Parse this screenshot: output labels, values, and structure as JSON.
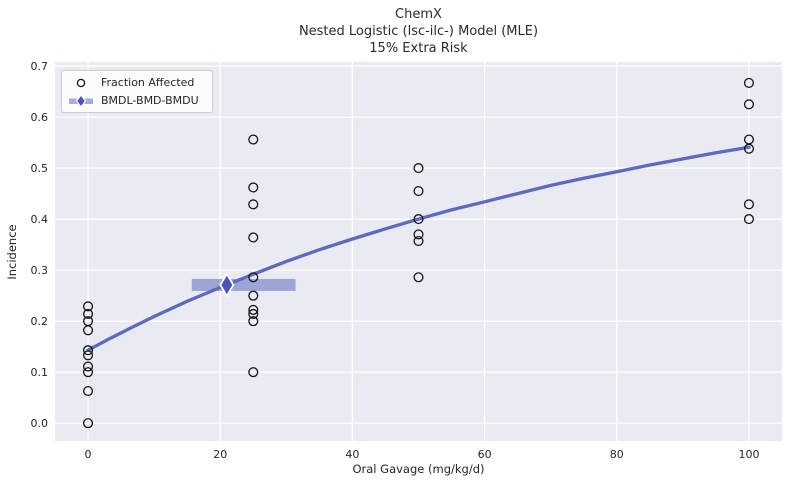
{
  "figure": {
    "title_lines": [
      "ChemX",
      "Nested Logistic (lsc-ilc-) Model (MLE)",
      "15% Extra Risk"
    ]
  },
  "legend": {
    "items": [
      {
        "label": "Fraction Affected",
        "marker": "open-circle-icon"
      },
      {
        "label": "BMDL-BMD-BMDU",
        "marker": "bmd-interval-icon"
      }
    ]
  },
  "chart_data": {
    "type": "scatter",
    "title": "ChemX\nNested Logistic (lsc-ilc-) Model (MLE)\n15% Extra Risk",
    "xlabel": "Oral Gavage (mg/kg/d)",
    "ylabel": "Incidence",
    "xlim": [
      -5,
      105
    ],
    "ylim": [
      -0.035,
      0.708
    ],
    "xticks": [
      0,
      20,
      40,
      60,
      80,
      100
    ],
    "yticks": [
      0.0,
      0.1,
      0.2,
      0.3,
      0.4,
      0.5,
      0.6,
      0.7
    ],
    "grid": true,
    "legend_position": "upper left",
    "scatter_series": {
      "name": "Fraction Affected",
      "marker": "open-circle",
      "groups": [
        {
          "dose": 0,
          "fractions": [
            0.0,
            0.063,
            0.1,
            0.111,
            0.133,
            0.143,
            0.182,
            0.2,
            0.214,
            0.229
          ]
        },
        {
          "dose": 25,
          "fractions": [
            0.1,
            0.2,
            0.214,
            0.222,
            0.25,
            0.286,
            0.364,
            0.429,
            0.462,
            0.556
          ]
        },
        {
          "dose": 50,
          "fractions": [
            0.286,
            0.357,
            0.37,
            0.4,
            0.455,
            0.5
          ]
        },
        {
          "dose": 100,
          "fractions": [
            0.4,
            0.429,
            0.538,
            0.556,
            0.625,
            0.667
          ]
        }
      ]
    },
    "model_curve": {
      "name": "Nested Logistic MLE fit",
      "x": [
        0,
        1,
        2,
        3,
        5,
        7,
        10,
        15,
        20,
        25,
        30,
        35,
        40,
        45,
        50,
        55,
        60,
        65,
        70,
        75,
        80,
        85,
        90,
        95,
        100
      ],
      "y": [
        0.143,
        0.15,
        0.157,
        0.164,
        0.177,
        0.19,
        0.209,
        0.239,
        0.266,
        0.292,
        0.317,
        0.34,
        0.361,
        0.381,
        0.4,
        0.418,
        0.434,
        0.45,
        0.466,
        0.48,
        0.493,
        0.506,
        0.518,
        0.53,
        0.541
      ]
    },
    "bmd_interval": {
      "name": "BMDL-BMD-BMDU",
      "bmdl": 15.7,
      "bmd": 21.0,
      "bmdu": 31.4,
      "response_at_bmd": 0.271
    }
  },
  "colors": {
    "plot_background": "#eaeaf2",
    "grid": "#ffffff",
    "accent": "#5c6bc0",
    "accent_dark": "#4a55b5",
    "marker_outline": "#141414",
    "text": "#262626"
  }
}
